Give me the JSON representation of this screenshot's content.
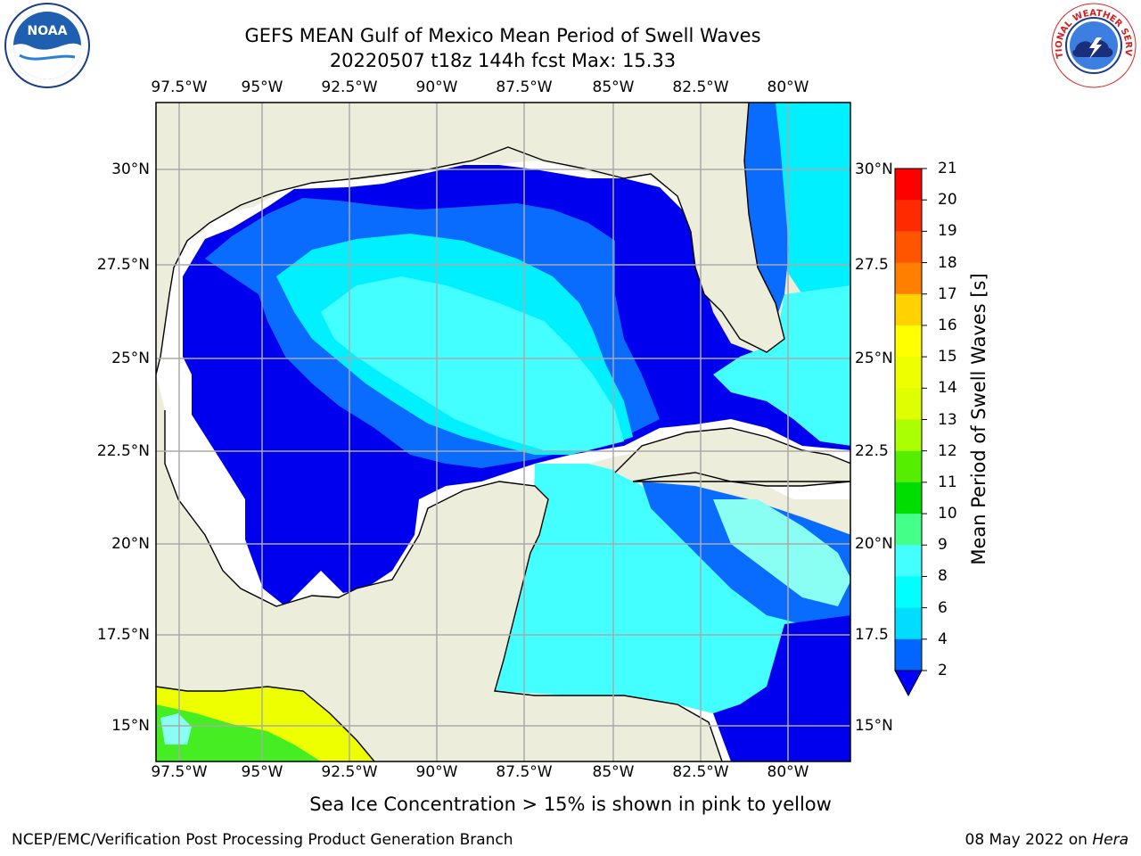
{
  "title": {
    "line1": "GEFS MEAN Gulf of Mexico Mean Period of Swell Waves",
    "line2": "20220507 t18z 144h fcst   Max: 15.33"
  },
  "axes": {
    "lon_ticks": [
      "97.5°W",
      "95°W",
      "92.5°W",
      "90°W",
      "87.5°W",
      "85°W",
      "82.5°W",
      "80°W"
    ],
    "lat_ticks_left": [
      "30°N",
      "27.5°N",
      "25°N",
      "22.5°N",
      "20°N",
      "17.5°N",
      "15°N"
    ],
    "lat_ticks_right": [
      "30°N",
      "27.5",
      "25°N",
      "22.5",
      "20°N",
      "17.5",
      "15°N"
    ]
  },
  "colorbar": {
    "label": "Mean Period of Swell Waves [s]",
    "ticks": [
      "21",
      "20",
      "19",
      "18",
      "17",
      "16",
      "15",
      "14",
      "13",
      "12",
      "11",
      "10",
      "9",
      "8",
      "6",
      "4",
      "2"
    ],
    "colors": [
      "#ff0000",
      "#ff2a00",
      "#ff5500",
      "#ff8000",
      "#ffaa00",
      "#ffd200",
      "#ffff00",
      "#eeff00",
      "#ddff00",
      "#aaff00",
      "#55ee00",
      "#00dd00",
      "#44ff88",
      "#99ffff",
      "#44ffff",
      "#00ffff",
      "#00ddff",
      "#0066ff",
      "#0000ff"
    ],
    "extend": "min"
  },
  "note": "Sea Ice Concentration > 15% is shown in pink to yellow",
  "footer": {
    "left": "NCEP/EMC/Verification Post Processing Product Generation Branch",
    "right_prefix": "08 May 2022 on ",
    "right_machine": "Hera"
  },
  "logos": {
    "left_text": "NOAA",
    "right_text": "NATIONAL WEATHER SERVICE"
  },
  "map_colors": {
    "land": "#ededdc",
    "no_data": "#ffffff",
    "deep_blue": "#0000ee",
    "mid_blue": "#0a6cff",
    "light_blue": "#0ab4ff",
    "cyan": "#00f0ff",
    "cyan_light": "#44ffff",
    "pale": "#88fff2",
    "yellow": "#eeff00",
    "green": "#44ee22",
    "grid": "#aaaaaa"
  }
}
